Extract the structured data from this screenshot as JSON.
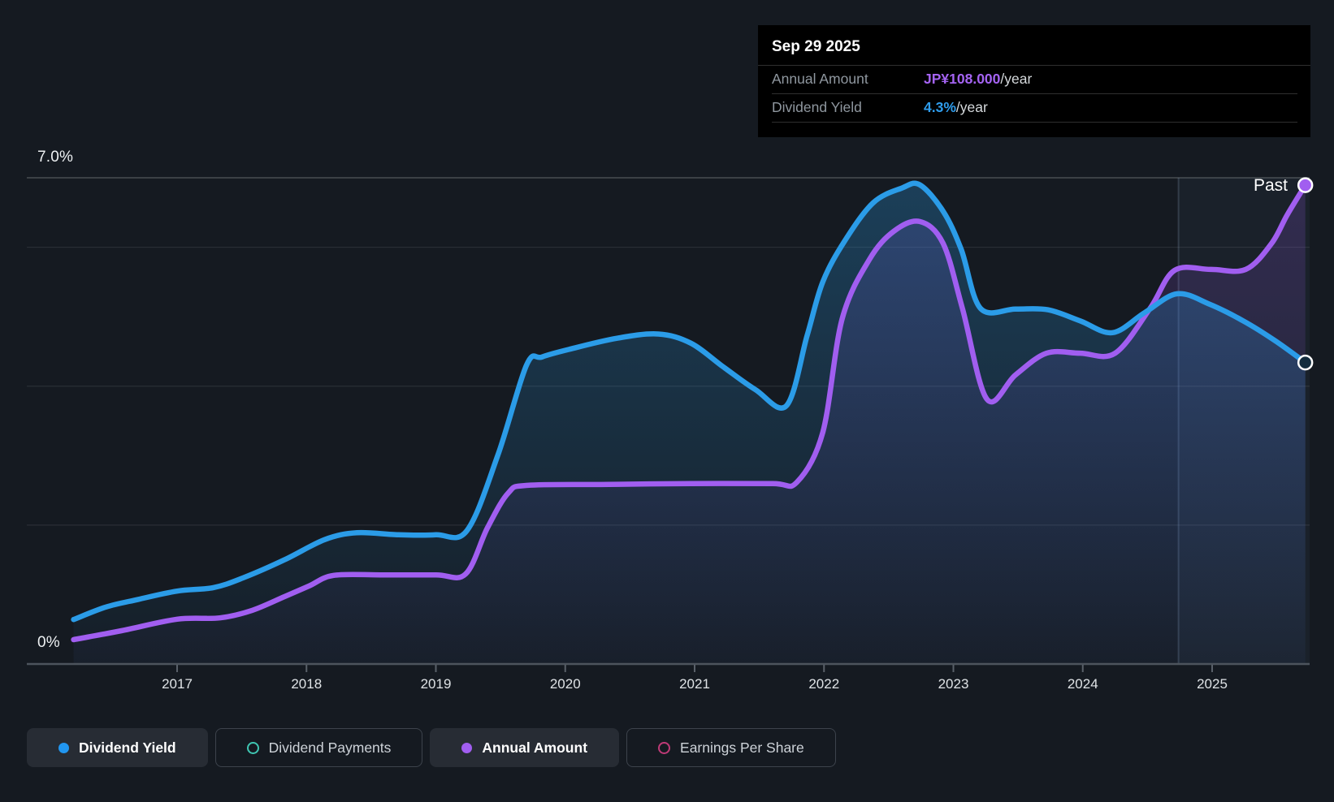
{
  "tooltip": {
    "date": "Sep 29 2025",
    "rows": [
      {
        "label": "Annual Amount",
        "value": "JP¥108.000",
        "suffix": "/year",
        "color": "#a463f2"
      },
      {
        "label": "Dividend Yield",
        "value": "4.3%",
        "suffix": "/year",
        "color": "#2f9ded"
      }
    ]
  },
  "labels": {
    "y_top": "7.0%",
    "y_zero": "0%",
    "past": "Past"
  },
  "legend": [
    {
      "label": "Dividend Yield",
      "color": "#2196f0",
      "active": true,
      "marker": "filled"
    },
    {
      "label": "Dividend Payments",
      "color": "#3fc6b2",
      "active": false,
      "marker": "ring"
    },
    {
      "label": "Annual Amount",
      "color": "#a15ef0",
      "active": true,
      "marker": "filled"
    },
    {
      "label": "Earnings Per Share",
      "color": "#bf3a77",
      "active": false,
      "marker": "ring"
    }
  ],
  "chart_data": {
    "type": "area",
    "title": "Dividend history",
    "x_axis": {
      "ticks": [
        2017,
        2018,
        2019,
        2020,
        2021,
        2022,
        2023,
        2024,
        2025
      ],
      "range": [
        2016.05,
        2025.75
      ]
    },
    "y_axis_pct": {
      "range": [
        0,
        7
      ],
      "gridlines": [
        2,
        4,
        6
      ],
      "top_line": 7,
      "top_label": "7.0%",
      "zero_label": "0%"
    },
    "y_axis_amount": {
      "range": [
        0,
        109.7
      ],
      "unit": "JP¥"
    },
    "past_boundary_year": 2024.74,
    "series": [
      {
        "name": "Dividend Yield",
        "unit": "%",
        "color": "#2b9ce8",
        "points": [
          [
            2016.2,
            0.64
          ],
          [
            2016.45,
            0.82
          ],
          [
            2016.7,
            0.93
          ],
          [
            2017.0,
            1.05
          ],
          [
            2017.28,
            1.1
          ],
          [
            2017.51,
            1.24
          ],
          [
            2017.83,
            1.5
          ],
          [
            2018.14,
            1.79
          ],
          [
            2018.39,
            1.89
          ],
          [
            2018.71,
            1.86
          ],
          [
            2019.0,
            1.86
          ],
          [
            2019.24,
            1.92
          ],
          [
            2019.48,
            3.01
          ],
          [
            2019.7,
            4.3
          ],
          [
            2019.82,
            4.42
          ],
          [
            2020.03,
            4.53
          ],
          [
            2020.4,
            4.69
          ],
          [
            2020.72,
            4.75
          ],
          [
            2020.97,
            4.62
          ],
          [
            2021.22,
            4.28
          ],
          [
            2021.47,
            3.95
          ],
          [
            2021.71,
            3.72
          ],
          [
            2021.87,
            4.73
          ],
          [
            2021.99,
            5.5
          ],
          [
            2022.16,
            6.09
          ],
          [
            2022.38,
            6.64
          ],
          [
            2022.6,
            6.85
          ],
          [
            2022.74,
            6.9
          ],
          [
            2022.92,
            6.52
          ],
          [
            2023.06,
            5.97
          ],
          [
            2023.21,
            5.12
          ],
          [
            2023.48,
            5.11
          ],
          [
            2023.73,
            5.1
          ],
          [
            2023.98,
            4.94
          ],
          [
            2024.23,
            4.77
          ],
          [
            2024.48,
            5.06
          ],
          [
            2024.73,
            5.33
          ],
          [
            2024.98,
            5.18
          ],
          [
            2025.24,
            4.94
          ],
          [
            2025.49,
            4.65
          ],
          [
            2025.72,
            4.34
          ]
        ]
      },
      {
        "name": "Annual Amount",
        "unit": "JP¥/year",
        "color": "#a15ef0",
        "points": [
          [
            2016.2,
            5.5
          ],
          [
            2016.57,
            7.5
          ],
          [
            2017.0,
            10.1
          ],
          [
            2017.33,
            10.4
          ],
          [
            2017.58,
            12.1
          ],
          [
            2017.83,
            15.2
          ],
          [
            2018.02,
            17.6
          ],
          [
            2018.21,
            20.0
          ],
          [
            2018.58,
            20.1
          ],
          [
            2019.0,
            20.1
          ],
          [
            2019.23,
            20.3
          ],
          [
            2019.4,
            30.8
          ],
          [
            2019.56,
            38.6
          ],
          [
            2019.71,
            40.3
          ],
          [
            2020.34,
            40.5
          ],
          [
            2020.97,
            40.7
          ],
          [
            2021.6,
            40.7
          ],
          [
            2021.79,
            41.0
          ],
          [
            2021.99,
            52.2
          ],
          [
            2022.14,
            77.8
          ],
          [
            2022.35,
            91.2
          ],
          [
            2022.54,
            97.6
          ],
          [
            2022.74,
            99.8
          ],
          [
            2022.92,
            94.9
          ],
          [
            2023.07,
            80.2
          ],
          [
            2023.26,
            59.7
          ],
          [
            2023.48,
            65.2
          ],
          [
            2023.72,
            70.1
          ],
          [
            2023.98,
            70.1
          ],
          [
            2024.25,
            70.1
          ],
          [
            2024.52,
            80.2
          ],
          [
            2024.71,
            88.8
          ],
          [
            2024.99,
            89.0
          ],
          [
            2025.26,
            89.0
          ],
          [
            2025.46,
            94.9
          ],
          [
            2025.58,
            101.3
          ],
          [
            2025.72,
            108.0
          ]
        ]
      }
    ]
  }
}
